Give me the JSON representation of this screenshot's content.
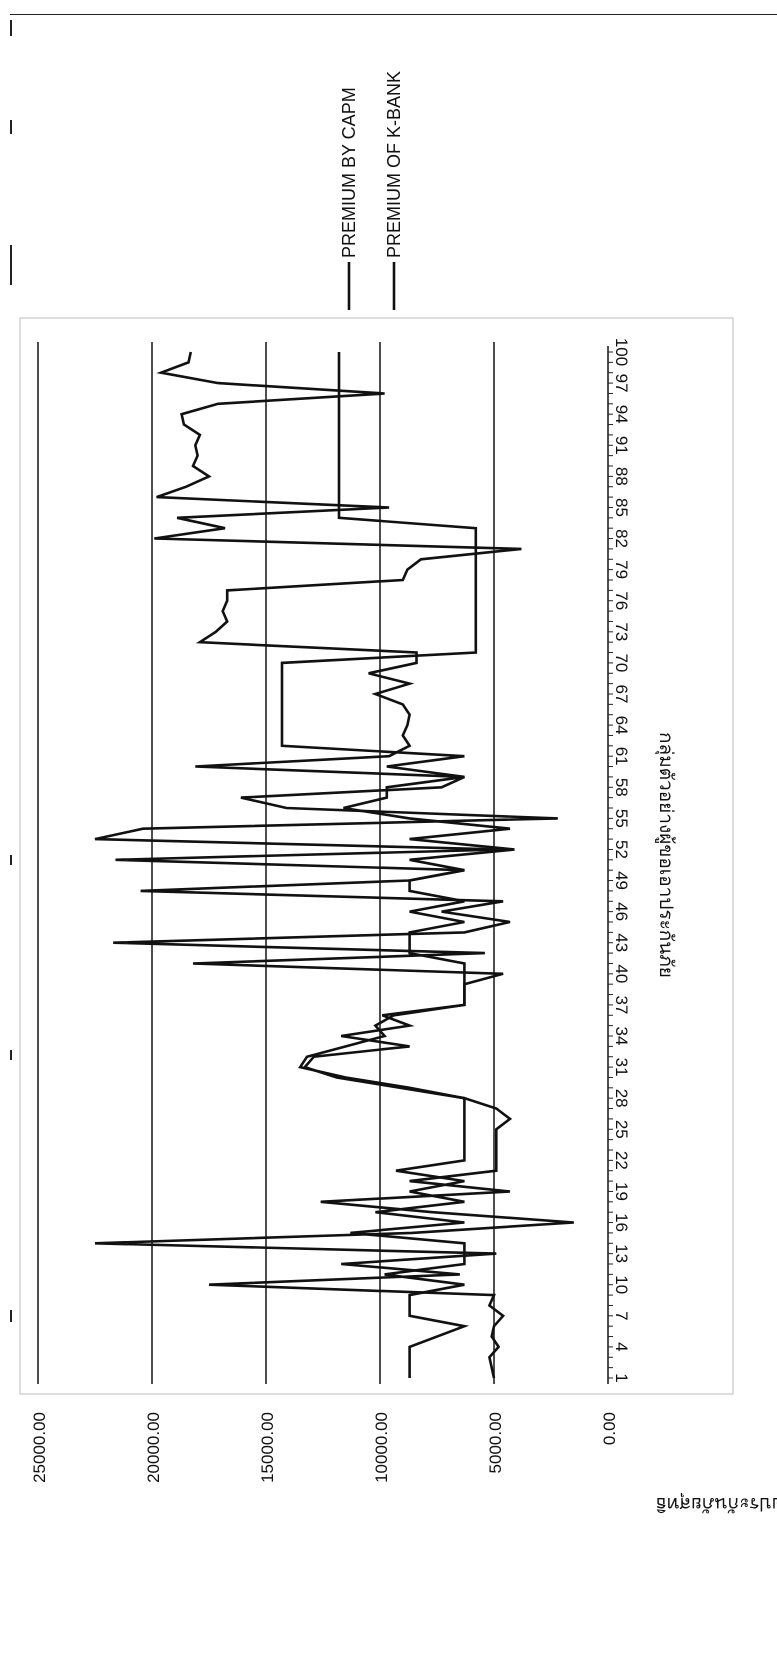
{
  "chart_data": {
    "type": "line",
    "xlabel": "กลุ่มตัวอย่างผู้ขอเอาประกันภัย",
    "ylabel": "ค่าเบี้ยประกันภัยสุทธิ",
    "ylim": [
      0,
      25000
    ],
    "y_ticks": [
      "0.00",
      "5000.00",
      "10000.00",
      "15000.00",
      "20000.00",
      "25000.00"
    ],
    "x_ticks": [
      "1",
      "4",
      "7",
      "10",
      "13",
      "16",
      "19",
      "22",
      "25",
      "28",
      "31",
      "34",
      "37",
      "40",
      "43",
      "46",
      "49",
      "52",
      "55",
      "58",
      "61",
      "64",
      "67",
      "70",
      "73",
      "76",
      "79",
      "82",
      "85",
      "88",
      "91",
      "94",
      "97",
      "100"
    ],
    "grid": true,
    "legend_position": "right",
    "series": [
      {
        "name": "PREMIUM BY CAPM",
        "x": [
          1,
          3,
          4,
          6,
          7,
          9,
          10,
          11,
          12,
          13,
          14,
          15,
          16,
          17,
          18,
          19,
          20,
          21,
          22,
          24,
          26,
          28,
          29,
          30,
          31,
          32,
          33,
          34,
          35,
          36,
          37,
          39,
          40,
          41,
          42,
          43,
          44,
          45,
          46,
          47,
          48,
          49,
          50,
          51,
          52,
          53,
          54,
          55,
          56,
          57,
          58,
          59,
          60,
          61,
          62,
          63,
          64,
          65,
          66,
          67,
          68,
          69,
          70,
          71,
          72,
          73,
          74,
          75,
          76,
          77,
          78,
          79,
          80,
          81,
          82,
          83,
          84,
          85,
          86,
          87,
          88,
          89,
          90,
          91,
          92,
          93,
          94,
          95,
          96,
          97,
          98,
          99,
          100
        ],
        "values": [
          8700,
          8700,
          8700,
          6300,
          8700,
          8700,
          6300,
          9800,
          6300,
          6300,
          6300,
          11300,
          6300,
          10200,
          6300,
          8700,
          6300,
          9300,
          6300,
          6300,
          6300,
          6300,
          8700,
          11500,
          13500,
          13200,
          11500,
          9800,
          10200,
          9400,
          6300,
          6300,
          6300,
          6300,
          8700,
          8700,
          8700,
          6300,
          8700,
          6300,
          8700,
          8700,
          6300,
          8700,
          4100,
          8700,
          4300,
          8700,
          11600,
          9700,
          9700,
          6300,
          9700,
          6300,
          14300,
          14300,
          14300,
          14300,
          14300,
          14300,
          14300,
          14300,
          14300,
          5800,
          5800,
          5800,
          5800,
          5800,
          5800,
          5800,
          5800,
          5800,
          5800,
          5800,
          5800,
          5800,
          11800,
          11800,
          11800,
          11800,
          11800,
          11800,
          11800,
          11800,
          11800,
          11800,
          11800,
          11800,
          11800,
          11800,
          11800,
          11800,
          11800
        ]
      },
      {
        "name": "PREMIUM OF K-BANK",
        "x": [
          1,
          3,
          4,
          5,
          6,
          7,
          8,
          9,
          10,
          11,
          12,
          13,
          14,
          15,
          16,
          17,
          18,
          19,
          20,
          21,
          22,
          23,
          24,
          25,
          26,
          27,
          28,
          29,
          30,
          31,
          32,
          33,
          34,
          35,
          36,
          37,
          38,
          39,
          40,
          41,
          42,
          43,
          44,
          45,
          46,
          47,
          48,
          49,
          50,
          51,
          52,
          53,
          54,
          55,
          56,
          57,
          58,
          59,
          60,
          61,
          62,
          63,
          64,
          65,
          66,
          67,
          68,
          69,
          70,
          71,
          72,
          73,
          74,
          75,
          76,
          77,
          78,
          79,
          80,
          81,
          82,
          83,
          84,
          85,
          86,
          87,
          88,
          89,
          90,
          91,
          92,
          93,
          94,
          95,
          96,
          97,
          98,
          99,
          100
        ],
        "values": [
          5000,
          5200,
          4800,
          5100,
          5000,
          4600,
          5200,
          5000,
          17500,
          6500,
          11700,
          4900,
          22500,
          8600,
          1500,
          7700,
          12600,
          4300,
          8700,
          4900,
          4900,
          4900,
          4900,
          4900,
          4300,
          4900,
          6300,
          9100,
          11900,
          13300,
          12900,
          8700,
          11700,
          8700,
          9900,
          6300,
          6300,
          6300,
          4600,
          18200,
          5400,
          21700,
          6300,
          4300,
          7300,
          4600,
          20500,
          8700,
          6300,
          21600,
          4600,
          22500,
          20400,
          2200,
          14100,
          16100,
          7300,
          6300,
          18100,
          9600,
          8700,
          9000,
          8800,
          8700,
          9000,
          10200,
          8700,
          10500,
          8400,
          8400,
          17900,
          17200,
          16700,
          16900,
          16700,
          16700,
          9000,
          8800,
          8200,
          3800,
          19900,
          16800,
          18900,
          9600,
          19800,
          18500,
          17500,
          18200,
          18000,
          18100,
          17900,
          18600,
          18700,
          17100,
          9800,
          17100,
          19600,
          18400,
          18300
        ]
      }
    ]
  }
}
